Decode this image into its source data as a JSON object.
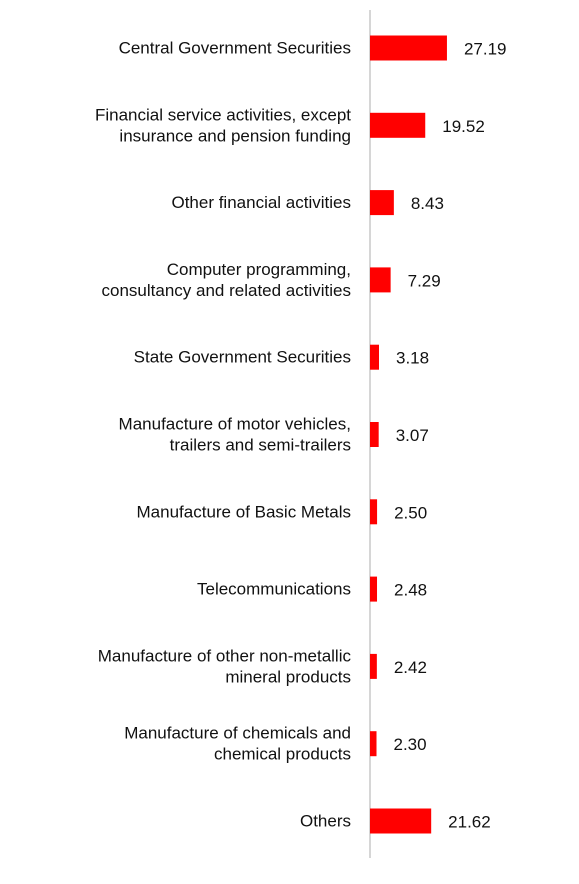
{
  "chart_data": {
    "type": "bar",
    "orientation": "horizontal",
    "title": "",
    "xlabel": "",
    "ylabel": "",
    "categories": [
      [
        "Central Government Securities"
      ],
      [
        "Financial service activities, except",
        "insurance and pension funding"
      ],
      [
        "Other financial activities"
      ],
      [
        "Computer programming,",
        "consultancy and related activities"
      ],
      [
        "State Government Securities"
      ],
      [
        "Manufacture of motor vehicles,",
        "trailers and semi-trailers"
      ],
      [
        "Manufacture of Basic Metals"
      ],
      [
        "Telecommunications"
      ],
      [
        "Manufacture of other non-metallic",
        "mineral products"
      ],
      [
        "Manufacture of chemicals and",
        "chemical products"
      ],
      [
        "Others"
      ]
    ],
    "values": [
      27.19,
      19.52,
      8.43,
      7.29,
      3.18,
      3.07,
      2.5,
      2.48,
      2.42,
      2.3,
      21.62
    ],
    "value_labels": [
      "27.19",
      "19.52",
      "8.43",
      "7.29",
      "3.18",
      "3.07",
      "2.50",
      "2.48",
      "2.42",
      "2.30",
      "21.62"
    ],
    "xlim": [
      0,
      100
    ],
    "grid": false,
    "legend": "none",
    "bar_color": "#ff0000",
    "axis_color": "#c8c8c8"
  }
}
